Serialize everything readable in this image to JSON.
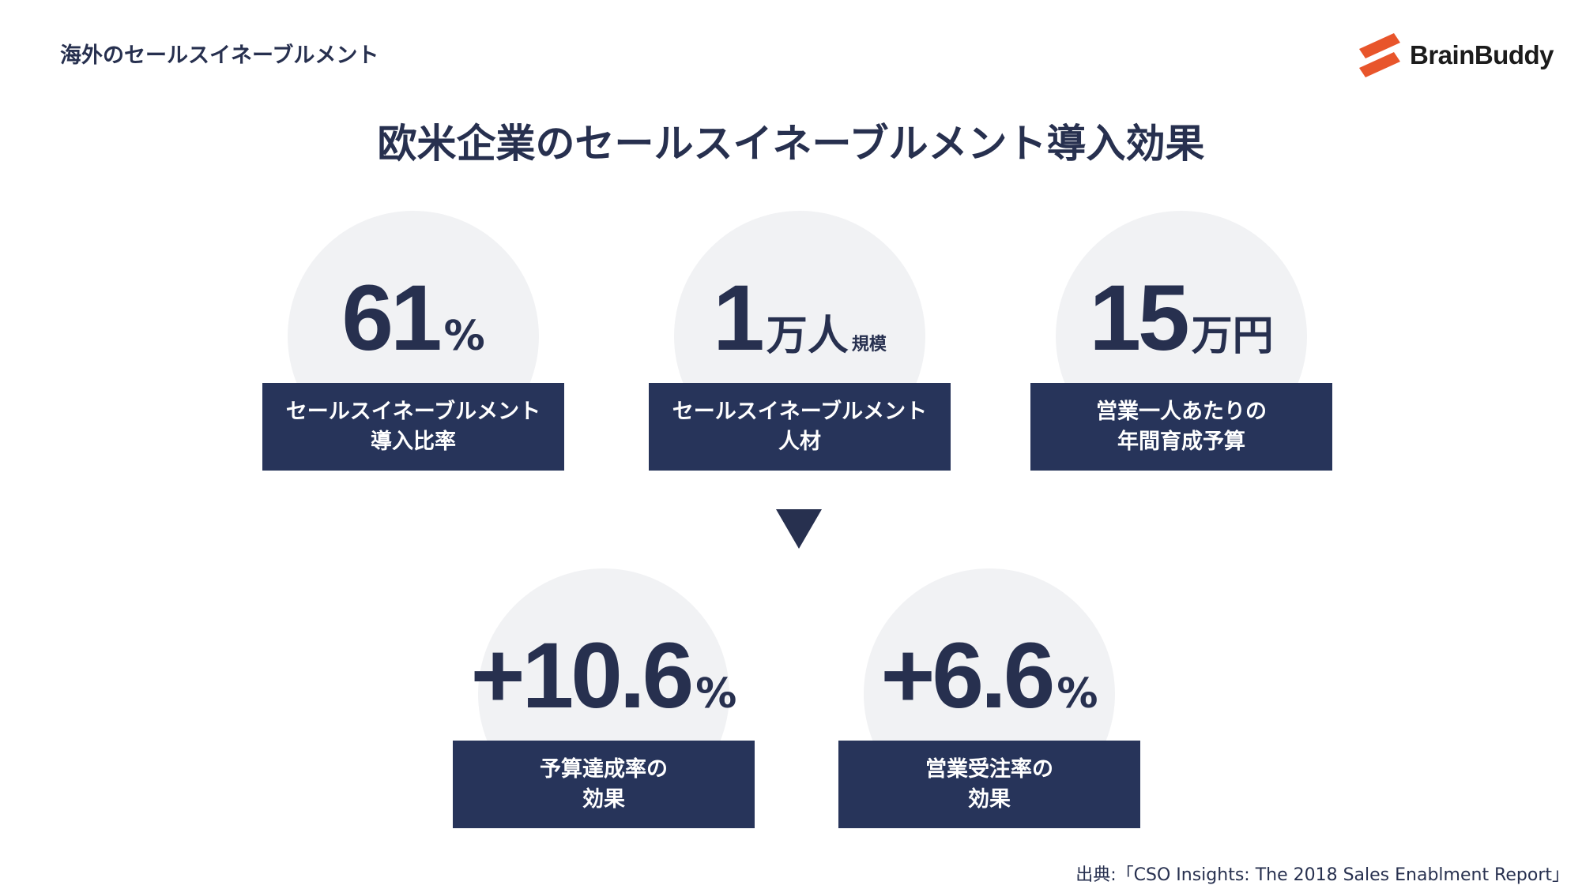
{
  "header": {
    "section_title": "海外のセールスイネーブルメント"
  },
  "logo": {
    "text": "BrainBuddy",
    "accent_color": "#e8552b"
  },
  "main_title": "欧米企業のセールスイネーブルメント導入効果",
  "stats_top": [
    {
      "number": "61",
      "unit": "%",
      "unit_small": "",
      "label_line1": "セールスイネーブルメント",
      "label_line2": "導入比率"
    },
    {
      "number": "1",
      "unit": "万人",
      "unit_small": "規模",
      "label_line1": "セールスイネーブルメント",
      "label_line2": "人材"
    },
    {
      "number": "15",
      "unit": "万円",
      "unit_small": "",
      "label_line1": "営業一人あたりの",
      "label_line2": "年間育成予算"
    }
  ],
  "stats_bottom": [
    {
      "number": "+10.6",
      "unit": "%",
      "label_line1": "予算達成率の",
      "label_line2": "効果"
    },
    {
      "number": "+6.6",
      "unit": "%",
      "label_line1": "営業受注率の",
      "label_line2": "効果"
    }
  ],
  "source": "出典:「CSO Insights: The 2018 Sales Enablment Report」",
  "colors": {
    "navy": "#27345a",
    "text": "#27304f",
    "circle": "#f1f2f4"
  }
}
